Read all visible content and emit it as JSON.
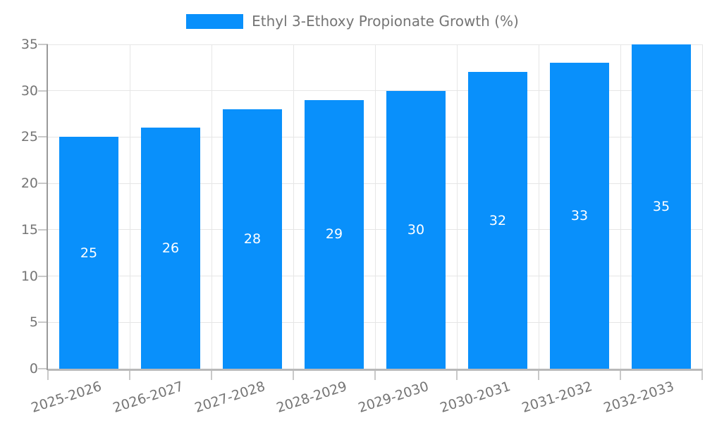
{
  "legend": {
    "label": "Ethyl 3-Ethoxy Propionate Growth (%)"
  },
  "chart_data": {
    "type": "bar",
    "title": "",
    "categories": [
      "2025-2026",
      "2026-2027",
      "2027-2028",
      "2028-2029",
      "2029-2030",
      "2030-2031",
      "2031-2032",
      "2032-2033"
    ],
    "values": [
      25,
      26,
      28,
      29,
      30,
      32,
      33,
      35
    ],
    "series": [
      {
        "name": "Ethyl 3-Ethoxy Propionate Growth (%)",
        "values": [
          25,
          26,
          28,
          29,
          30,
          32,
          33,
          35
        ]
      }
    ],
    "xlabel": "",
    "ylabel": "",
    "ylim": [
      0,
      35
    ],
    "yticks": [
      0,
      5,
      10,
      15,
      20,
      25,
      30,
      35
    ],
    "grid": true,
    "legend_position": "top",
    "bar_color": "#0990fb",
    "value_label_color": "#ffffff",
    "axis_label_color": "#757575",
    "value_labels": [
      "25",
      "26",
      "28",
      "29",
      "30",
      "32",
      "33",
      "35"
    ]
  }
}
